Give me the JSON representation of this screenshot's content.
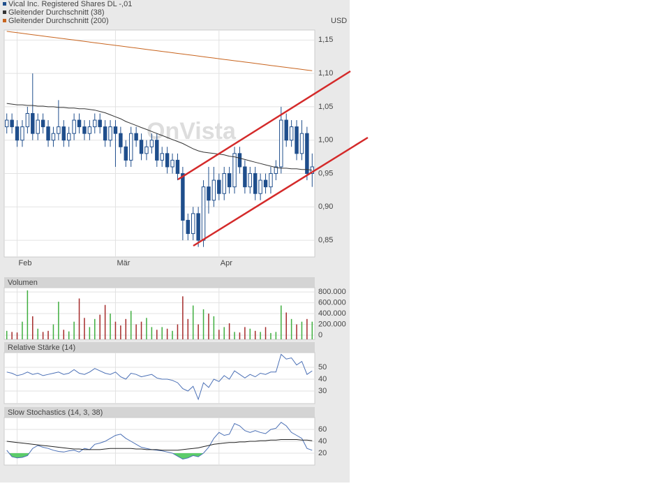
{
  "chart_data": [
    {
      "type": "candlestick",
      "y_label": "USD",
      "watermark": "OnVista",
      "categories": [
        null,
        null,
        "Feb",
        null,
        null,
        null,
        null,
        null,
        null,
        null,
        null,
        null,
        null,
        null,
        null,
        null,
        null,
        null,
        null,
        null,
        null,
        "Mär",
        null,
        null,
        null,
        null,
        null,
        null,
        null,
        null,
        null,
        null,
        null,
        null,
        null,
        null,
        null,
        null,
        null,
        null,
        null,
        "Apr",
        null,
        null,
        null,
        null,
        null,
        null,
        null,
        null,
        null,
        null,
        null,
        null,
        null,
        null,
        null,
        null,
        null,
        null
      ],
      "series": [
        {
          "name": "Vical Inc. Registered Shares DL -,01",
          "color": "#1f4e8c",
          "open": [
            1.02,
            1.03,
            1.02,
            1.0,
            1.02,
            1.04,
            1.01,
            1.03,
            1.02,
            1.0,
            1.01,
            1.02,
            1.0,
            1.01,
            1.03,
            1.02,
            1.01,
            1.02,
            1.03,
            1.02,
            1.0,
            1.02,
            1.01,
            0.99,
            0.97,
            1.01,
            1.0,
            0.98,
            0.99,
            1.0,
            0.97,
            0.98,
            0.96,
            0.97,
            0.95,
            0.88,
            0.86,
            0.89,
            0.85,
            0.93,
            0.91,
            0.94,
            0.92,
            0.95,
            0.93,
            0.98,
            0.96,
            0.93,
            0.95,
            0.92,
            0.94,
            0.93,
            0.95,
            0.96,
            1.03,
            1.0,
            1.02,
            0.98,
            1.01,
            0.95
          ],
          "high": [
            1.04,
            1.04,
            1.03,
            1.03,
            1.05,
            1.1,
            1.04,
            1.04,
            1.03,
            1.02,
            1.06,
            1.03,
            1.02,
            1.04,
            1.04,
            1.03,
            1.03,
            1.04,
            1.04,
            1.03,
            1.03,
            1.03,
            1.02,
            1.0,
            1.02,
            1.02,
            1.01,
            1.0,
            1.01,
            1.01,
            0.99,
            0.99,
            0.98,
            0.98,
            0.96,
            0.89,
            0.9,
            0.9,
            0.94,
            0.96,
            0.96,
            0.95,
            0.96,
            0.96,
            0.99,
            0.99,
            0.97,
            0.96,
            0.96,
            0.95,
            0.95,
            0.96,
            0.97,
            1.05,
            1.04,
            1.03,
            1.03,
            1.03,
            1.02,
            0.98
          ],
          "low": [
            1.01,
            1.01,
            0.99,
            0.99,
            1.01,
            1.0,
            1.0,
            1.01,
            0.99,
            0.99,
            1.0,
            0.99,
            0.99,
            1.0,
            1.01,
            1.0,
            1.0,
            1.01,
            1.01,
            0.99,
            0.99,
            0.96,
            0.98,
            0.96,
            0.96,
            0.99,
            0.97,
            0.97,
            0.98,
            0.96,
            0.96,
            0.95,
            0.95,
            0.94,
            0.85,
            0.85,
            0.85,
            0.84,
            0.84,
            0.89,
            0.9,
            0.91,
            0.91,
            0.92,
            0.92,
            0.95,
            0.92,
            0.92,
            0.91,
            0.91,
            0.92,
            0.92,
            0.94,
            0.95,
            0.99,
            0.99,
            0.97,
            0.97,
            0.94,
            0.93
          ],
          "close": [
            1.03,
            1.02,
            1.0,
            1.02,
            1.04,
            1.01,
            1.03,
            1.02,
            1.0,
            1.01,
            1.02,
            1.0,
            1.01,
            1.03,
            1.02,
            1.01,
            1.02,
            1.03,
            1.02,
            1.0,
            1.02,
            1.01,
            0.99,
            0.97,
            1.01,
            1.0,
            0.98,
            0.99,
            1.0,
            0.97,
            0.98,
            0.96,
            0.97,
            0.95,
            0.88,
            0.86,
            0.89,
            0.85,
            0.93,
            0.91,
            0.94,
            0.92,
            0.95,
            0.93,
            0.98,
            0.96,
            0.93,
            0.95,
            0.92,
            0.94,
            0.93,
            0.95,
            0.96,
            1.03,
            1.0,
            1.02,
            0.98,
            1.01,
            0.95,
            0.96
          ]
        },
        {
          "name": "Gleitender Durchschnitt (38)",
          "color": "#333333",
          "values": [
            1.055,
            1.054,
            1.053,
            1.053,
            1.052,
            1.052,
            1.051,
            1.051,
            1.05,
            1.05,
            1.049,
            1.049,
            1.048,
            1.048,
            1.047,
            1.047,
            1.046,
            1.045,
            1.043,
            1.041,
            1.038,
            1.035,
            1.032,
            1.028,
            1.025,
            1.022,
            1.019,
            1.016,
            1.013,
            1.01,
            1.007,
            1.004,
            1.001,
            0.998,
            0.995,
            0.991,
            0.987,
            0.984,
            0.982,
            0.981,
            0.98,
            0.979,
            0.978,
            0.976,
            0.975,
            0.973,
            0.971,
            0.969,
            0.967,
            0.965,
            0.963,
            0.961,
            0.959,
            0.958,
            0.958,
            0.957,
            0.957,
            0.956,
            0.956,
            0.955
          ]
        },
        {
          "name": "Gleitender Durchschnitt (200)",
          "color": "#c8641e",
          "values": [
            1.163,
            1.162,
            1.161,
            1.16,
            1.159,
            1.158,
            1.157,
            1.156,
            1.155,
            1.154,
            1.153,
            1.152,
            1.151,
            1.15,
            1.149,
            1.148,
            1.147,
            1.146,
            1.145,
            1.144,
            1.143,
            1.142,
            1.141,
            1.14,
            1.139,
            1.138,
            1.137,
            1.136,
            1.135,
            1.134,
            1.133,
            1.132,
            1.131,
            1.13,
            1.129,
            1.128,
            1.127,
            1.126,
            1.125,
            1.124,
            1.123,
            1.122,
            1.121,
            1.12,
            1.119,
            1.118,
            1.117,
            1.116,
            1.115,
            1.114,
            1.113,
            1.112,
            1.111,
            1.11,
            1.109,
            1.108,
            1.107,
            1.106,
            1.105,
            1.104
          ]
        }
      ],
      "ylim": [
        0.825,
        1.165
      ],
      "yticks": [
        {
          "value": 0.85,
          "label": "0,85"
        },
        {
          "value": 0.9,
          "label": "0,90"
        },
        {
          "value": 0.95,
          "label": "0,95"
        },
        {
          "value": 1.0,
          "label": "1,00"
        },
        {
          "value": 1.05,
          "label": "1,05"
        },
        {
          "value": 1.1,
          "label": "1,10"
        },
        {
          "value": 1.15,
          "label": "1,15"
        }
      ],
      "grid": true
    },
    {
      "type": "bar",
      "title": "Volumen",
      "up_color": "#3fae3f",
      "down_color": "#a52a2a",
      "values": [
        80000,
        60000,
        50000,
        250000,
        830000,
        350000,
        120000,
        60000,
        80000,
        200000,
        620000,
        100000,
        70000,
        250000,
        680000,
        320000,
        150000,
        300000,
        380000,
        560000,
        400000,
        250000,
        180000,
        300000,
        450000,
        200000,
        250000,
        320000,
        150000,
        100000,
        150000,
        120000,
        80000,
        200000,
        720000,
        300000,
        550000,
        200000,
        480000,
        400000,
        350000,
        100000,
        150000,
        220000,
        60000,
        50000,
        150000,
        120000,
        80000,
        60000,
        150000,
        40000,
        60000,
        550000,
        420000,
        300000,
        200000,
        250000,
        300000,
        250000
      ],
      "ylim": [
        0,
        880000
      ],
      "yticks": [
        0,
        {
          "value": 200000,
          "label": "200.000"
        },
        {
          "value": 400000,
          "label": "400.000"
        },
        {
          "value": 600000,
          "label": "600.000"
        },
        {
          "value": 800000,
          "label": "800.000"
        }
      ],
      "grid": true
    },
    {
      "type": "line",
      "title": "Relative Stärke (14)",
      "color": "#4a6fb5",
      "values": [
        46,
        45,
        43,
        44,
        46,
        44,
        45,
        43,
        44,
        45,
        46,
        44,
        45,
        48,
        45,
        44,
        46,
        49,
        47,
        45,
        44,
        46,
        42,
        40,
        45,
        44,
        42,
        43,
        44,
        41,
        40,
        40,
        39,
        37,
        32,
        30,
        34,
        23,
        37,
        33,
        40,
        38,
        43,
        40,
        47,
        44,
        41,
        44,
        42,
        45,
        44,
        46,
        46,
        61,
        57,
        58,
        52,
        55,
        44,
        47
      ],
      "ylim": [
        19.4,
        62.4
      ],
      "yticks": [
        30,
        40,
        50
      ],
      "grid": true
    },
    {
      "type": "stochastic",
      "title": "Slow Stochastics (14, 3, 38)",
      "series": [
        {
          "color": "#4a6fb5",
          "fill": "#5ccc6a",
          "values": [
            25,
            14,
            12,
            13,
            16,
            28,
            33,
            30,
            28,
            25,
            23,
            22,
            24,
            25,
            22,
            28,
            26,
            35,
            37,
            40,
            45,
            50,
            52,
            45,
            40,
            35,
            30,
            28,
            26,
            25,
            24,
            22,
            20,
            15,
            10,
            12,
            16,
            14,
            20,
            30,
            45,
            55,
            50,
            52,
            70,
            66,
            58,
            55,
            58,
            55,
            53,
            60,
            62,
            72,
            66,
            55,
            50,
            45,
            28,
            25
          ]
        },
        {
          "color": "#222222",
          "values": [
            40,
            39,
            38,
            37,
            36,
            35,
            34,
            33,
            32,
            31,
            30,
            29,
            28,
            27,
            27,
            26,
            26,
            26,
            26,
            27,
            28,
            28,
            28,
            28,
            28,
            27,
            27,
            26,
            26,
            26,
            25,
            25,
            25,
            25,
            26,
            27,
            28,
            29,
            31,
            33,
            35,
            36,
            37,
            38,
            38,
            39,
            39,
            40,
            40,
            41,
            41,
            42,
            42,
            43,
            43,
            43,
            43,
            42,
            42,
            41
          ]
        }
      ],
      "ylim": [
        0,
        80
      ],
      "yticks": [
        20,
        40,
        60
      ],
      "grid": true
    }
  ]
}
